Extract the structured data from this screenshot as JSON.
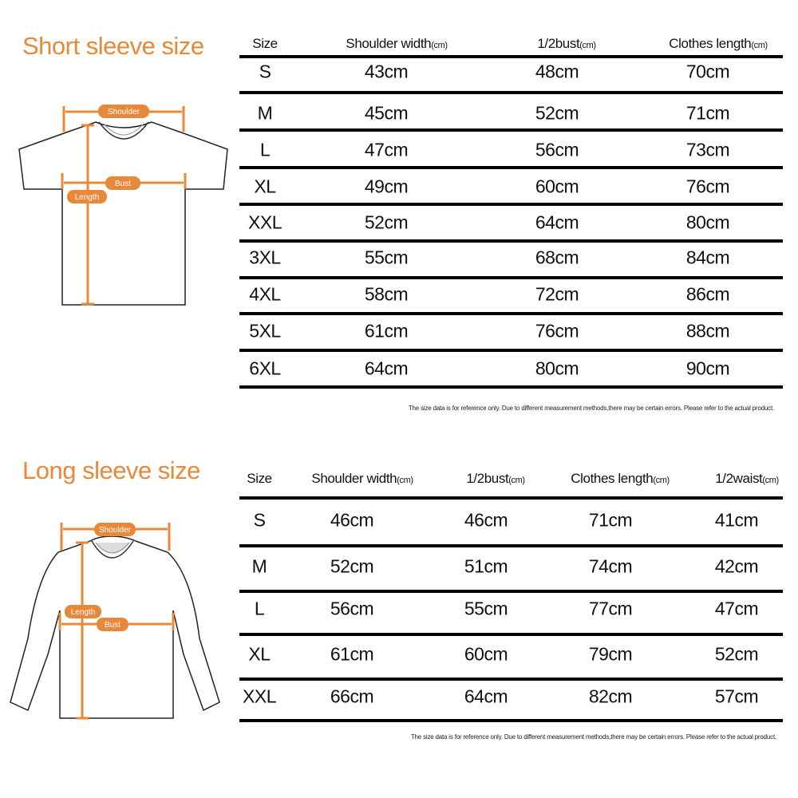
{
  "colors": {
    "accent": "#e8883a",
    "rule": "#000000"
  },
  "short_sleeve": {
    "title": "Short sleeve size",
    "diagram_labels": {
      "shoulder": "Shoulder",
      "bust": "Bust",
      "length": "Length"
    },
    "headers": [
      {
        "label": "Size",
        "unit": ""
      },
      {
        "label": "Shoulder width",
        "unit": "(cm)"
      },
      {
        "label": "1/2bust",
        "unit": "(cm)"
      },
      {
        "label": "Clothes length",
        "unit": "(cm)"
      }
    ],
    "rows": [
      [
        "S",
        "43cm",
        "48cm",
        "70cm"
      ],
      [
        "M",
        "45cm",
        "52cm",
        "71cm"
      ],
      [
        "L",
        "47cm",
        "56cm",
        "73cm"
      ],
      [
        "XL",
        "49cm",
        "60cm",
        "76cm"
      ],
      [
        "XXL",
        "52cm",
        "64cm",
        "80cm"
      ],
      [
        "3XL",
        "55cm",
        "68cm",
        "84cm"
      ],
      [
        "4XL",
        "58cm",
        "72cm",
        "86cm"
      ],
      [
        "5XL",
        "61cm",
        "76cm",
        "88cm"
      ],
      [
        "6XL",
        "64cm",
        "80cm",
        "90cm"
      ]
    ],
    "note": "The size data is for reference only. Due to different measurement methods,there may be certain errors. Please refer to the actual product."
  },
  "long_sleeve": {
    "title": "Long sleeve size",
    "diagram_labels": {
      "shoulder": "Shoulder",
      "bust": "Bust",
      "length": "Length"
    },
    "headers": [
      {
        "label": "Size",
        "unit": ""
      },
      {
        "label": "Shoulder width",
        "unit": "(cm)"
      },
      {
        "label": "1/2bust",
        "unit": "(cm)"
      },
      {
        "label": "Clothes length",
        "unit": "(cm)"
      },
      {
        "label": "1/2waist",
        "unit": "(cm)"
      }
    ],
    "rows": [
      [
        "S",
        "46cm",
        "46cm",
        "71cm",
        "41cm"
      ],
      [
        "M",
        "52cm",
        "51cm",
        "74cm",
        "42cm"
      ],
      [
        "L",
        "56cm",
        "55cm",
        "77cm",
        "47cm"
      ],
      [
        "XL",
        "61cm",
        "60cm",
        "79cm",
        "52cm"
      ],
      [
        "XXL",
        "66cm",
        "64cm",
        "82cm",
        "57cm"
      ]
    ],
    "note": "The size data is for reference only. Due to different measurement methods,there may be certain errors. Please refer to the actual product."
  }
}
